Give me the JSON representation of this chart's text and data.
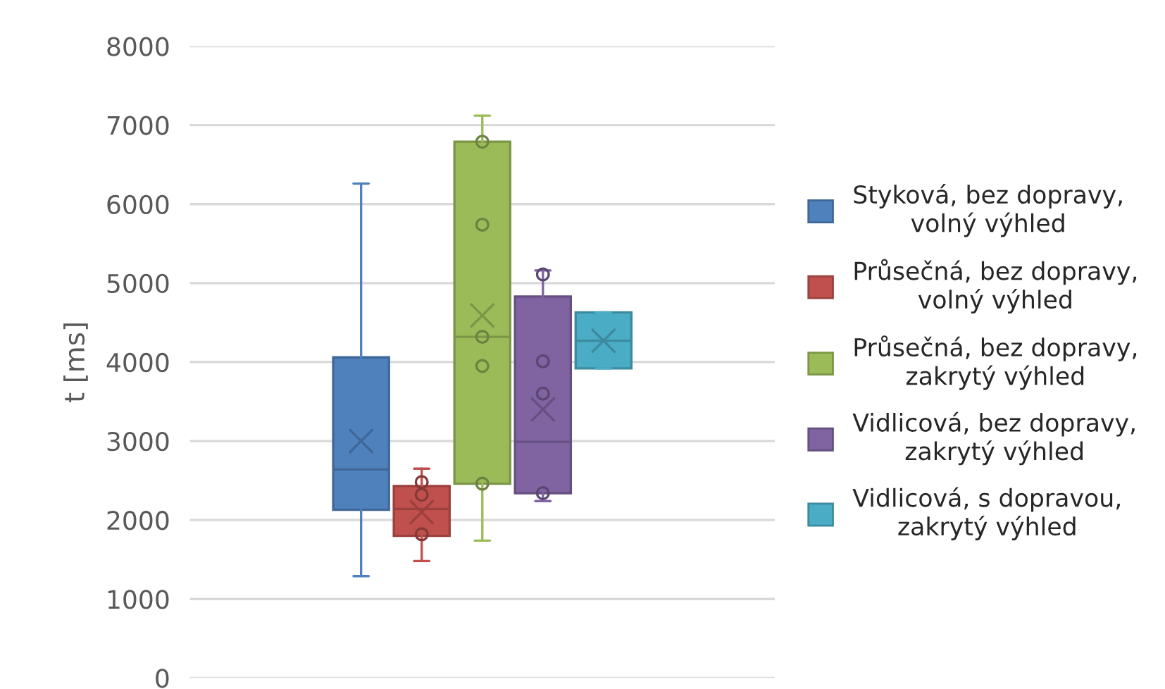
{
  "chart_data": {
    "type": "box",
    "ylabel": "t [ms]",
    "categories": [
      null
    ],
    "ylim": [
      0,
      8000
    ],
    "yticks": [
      0,
      1000,
      2000,
      3000,
      4000,
      5000,
      6000,
      7000,
      8000
    ],
    "grid": "y",
    "tick_labels": "y",
    "legend": "right",
    "series": [
      {
        "name": "Styková, bez dopravy,\nvolný výhled",
        "color": "#4f81bd",
        "boxes": [
          {
            "low": 1290,
            "q1": 2130,
            "median": 2640,
            "q3": 4060,
            "high": 6260,
            "mean": 3000
          }
        ]
      },
      {
        "name": "Průsečná, bez dopravy,\nvolný výhled",
        "color": "#c0504d",
        "boxes": [
          {
            "low": 1480,
            "q1": 1800,
            "median": 2140,
            "q3": 2430,
            "high": 2650,
            "mean": 2100,
            "outliers": [
              2480,
              2320,
              1820
            ]
          }
        ]
      },
      {
        "name": "Průsečná, bez dopravy,\nzakrytý výhled",
        "color": "#9bbb59",
        "boxes": [
          {
            "low": 1740,
            "q1": 2460,
            "median": 4320,
            "q3": 6790,
            "high": 7120,
            "mean": 4590,
            "outliers": [
              6790,
              5740,
              4320,
              3950,
              2460
            ]
          }
        ]
      },
      {
        "name": "Vidlicová, bez dopravy,\nzakrytý výhled",
        "color": "#8064a2",
        "boxes": [
          {
            "low": 2240,
            "q1": 2340,
            "median": 2990,
            "q3": 4830,
            "high": 5160,
            "mean": 3400,
            "outliers": [
              5110,
              4010,
              3600,
              2340
            ]
          }
        ]
      },
      {
        "name": "Vidlicová, s dopravou,\nzakrytý výhled",
        "color": "#4bacc6",
        "boxes": [
          {
            "low": 3920,
            "q1": 3920,
            "median": 4270,
            "q3": 4630,
            "high": 4630,
            "mean": 4270
          }
        ]
      }
    ]
  }
}
